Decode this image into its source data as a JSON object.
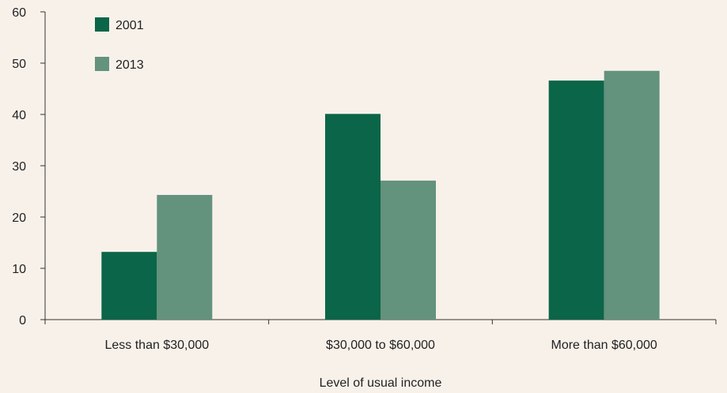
{
  "chart_data": {
    "type": "bar",
    "title": "",
    "xlabel": "Level of usual income",
    "ylabel": "",
    "ylim": [
      0,
      60
    ],
    "yticks": [
      0,
      10,
      20,
      30,
      40,
      50,
      60
    ],
    "grid": false,
    "legend_position": "top-left",
    "categories": [
      "Less than $30,000",
      "$30,000 to $60,000",
      "More than $60,000"
    ],
    "series": [
      {
        "name": "2001",
        "color": "#0b6548",
        "values": [
          13.2,
          40.1,
          46.6
        ]
      },
      {
        "name": "2013",
        "color": "#63927d",
        "values": [
          24.3,
          27.1,
          48.5
        ]
      }
    ]
  }
}
